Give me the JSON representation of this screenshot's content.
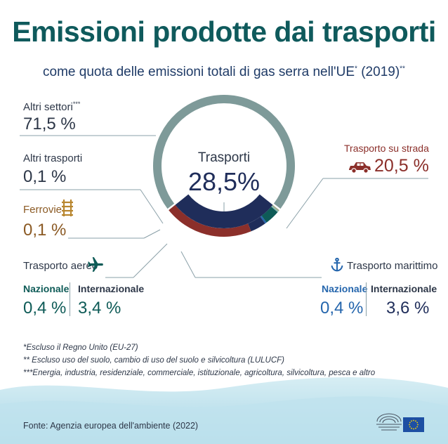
{
  "title": "Emissioni prodotte dai trasporti",
  "subtitle": "come quota delle emissioni totali di gas serra nell'UE",
  "subtitle_mark1": "*",
  "subtitle_year": " (2019)",
  "subtitle_mark2": "**",
  "chart_data": {
    "type": "pie",
    "subtype": "donut",
    "center_label": "Trasporti",
    "center_value": "28,5%",
    "slices": [
      {
        "label": "Altri settori",
        "mark": "***",
        "value": 71.5,
        "display": "71,5 %",
        "color": "#7e9a99"
      },
      {
        "label": "Trasporto su strada",
        "value": 20.5,
        "display": "20,5 %",
        "color": "#1f2d5a"
      },
      {
        "label": "Altri trasporti",
        "value": 0.1,
        "display": "0,1 %",
        "color": "#8aa8a6"
      },
      {
        "label": "Ferrovie",
        "value": 0.1,
        "display": "0,1 %",
        "color": "#c9a24a"
      },
      {
        "label": "Trasporto aereo - Nazionale",
        "value": 0.4,
        "display": "0,4 %",
        "color": "#8fb9b3"
      },
      {
        "label": "Trasporto aereo - Internazionale",
        "value": 3.4,
        "display": "3,4 %",
        "color": "#0e5b57"
      },
      {
        "label": "Trasporto marittimo - Nazionale",
        "value": 0.4,
        "display": "0,4 %",
        "color": "#2566ad"
      },
      {
        "label": "Trasporto marittimo - Internazionale",
        "value": 3.6,
        "display": "3,6 %",
        "color": "#1f2d5a"
      }
    ],
    "inner_ring_value": 28.5
  },
  "labels": {
    "altri_settori": "Altri settori",
    "altri_settori_mark": "***",
    "altri_settori_val": "71,5 %",
    "altri_trasporti": "Altri trasporti",
    "altri_trasporti_val": "0,1 %",
    "ferrovie": "Ferrovie",
    "ferrovie_val": "0,1 %",
    "strada": "Trasporto su strada",
    "strada_val": "20,5 %",
    "aereo": "Trasporto aereo",
    "aereo_naz": "Nazionale",
    "aereo_int": "Internazionale",
    "aereo_naz_val": "0,4 %",
    "aereo_int_val": "3,4 %",
    "marittimo": "Trasporto marittimo",
    "mar_naz": "Nazionale",
    "mar_int": "Internazionale",
    "mar_naz_val": "0,4 %",
    "mar_int_val": "3,6 %"
  },
  "footnotes": [
    "*Escluso il Regno Unito (EU-27)",
    "** Escluso uso del suolo, cambio di uso del suolo e silvicoltura (LULUCF)",
    "***Energia, industria, residenziale, commerciale, istituzionale, agricoltura, silvicoltura, pesca e altro"
  ],
  "source": "Fonte: Agenzia europea dell'ambiente (2022)",
  "icons": {
    "car": "car-icon",
    "rail": "railway-icon",
    "plane": "airplane-icon",
    "anchor": "anchor-icon",
    "parliament": "european-parliament-logo",
    "flag": "eu-flag-icon"
  },
  "colors": {
    "title": "#0f5a5c",
    "ring": "#7e9a99",
    "road": "#1f2d5a",
    "road_outer": "#8b2f2a",
    "air": "#0e5b57",
    "sea": "#2566ad"
  }
}
